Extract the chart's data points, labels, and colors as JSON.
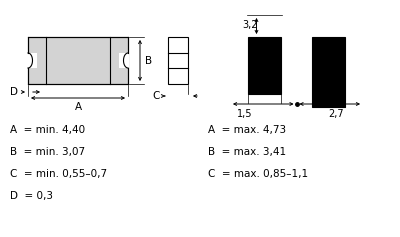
{
  "bg_color": "#ffffff",
  "line_color": "#000000",
  "gray_fill": "#d3d3d3",
  "black_fill": "#000000",
  "text_color": "#000000",
  "font_size_labels": 7.5,
  "font_size_dim": 7.0,
  "annotations_left": [
    "A  = min. 4,40",
    "B  = min. 3,07",
    "C  = min. 0,55–0,7",
    "D  = 0,3"
  ],
  "annotations_right": [
    "A  = max. 4,73",
    "B  = max. 3,41",
    "C  = max. 0,85–1,1",
    ""
  ]
}
